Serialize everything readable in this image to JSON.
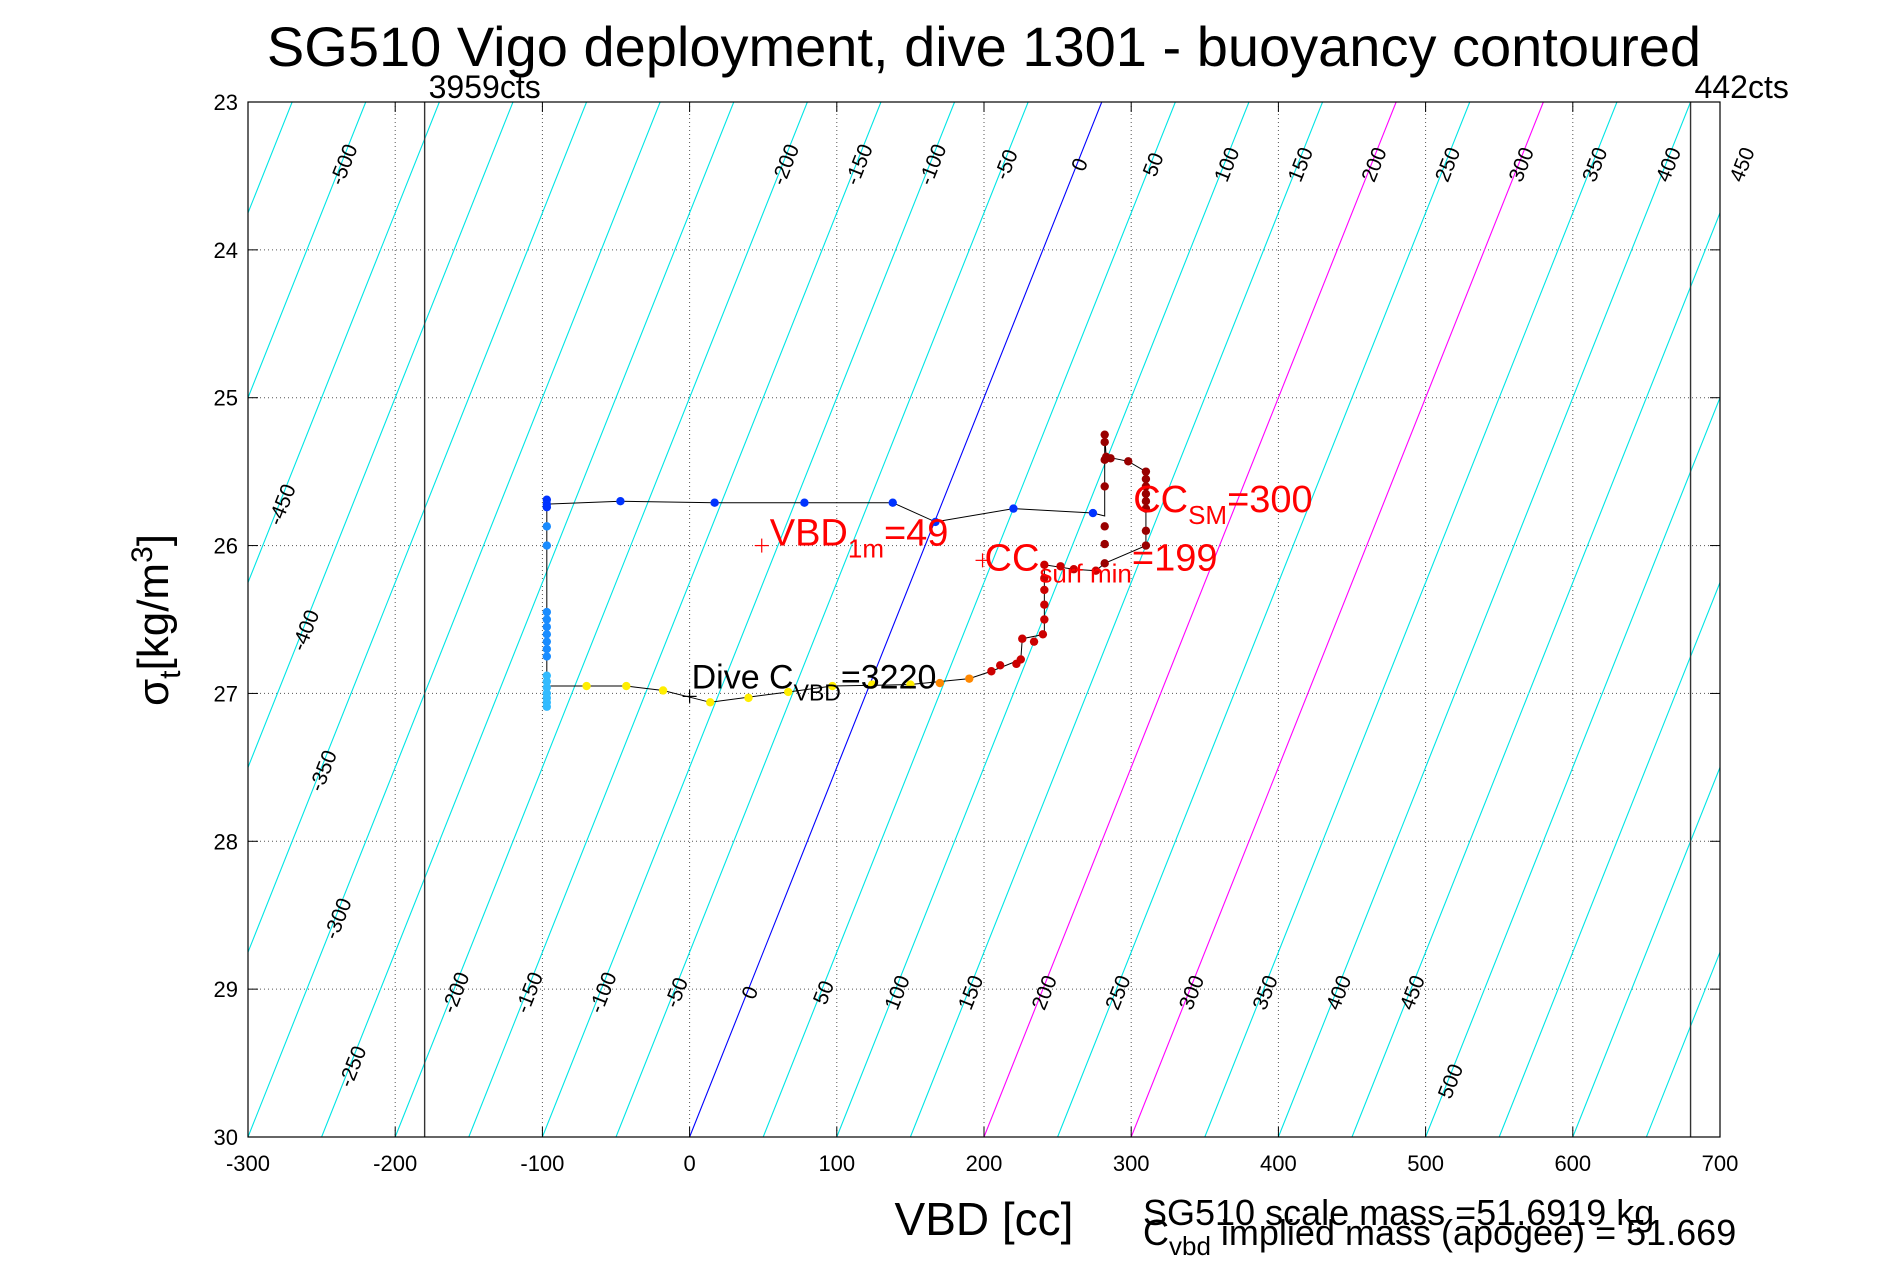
{
  "chart_data": {
    "type": "scatter",
    "title": "SG510 Vigo deployment, dive 1301 - buoyancy contoured",
    "xlabel": "VBD [cc]",
    "ylabel_main": "σ",
    "ylabel_sub": "t",
    "ylabel_units": "[kg/m",
    "ylabel_sup": "3",
    "ylabel_close": "]",
    "xlim": [
      -300,
      700
    ],
    "ylim": [
      23,
      30
    ],
    "y_reversed": true,
    "grid": true,
    "xticks": [
      -300,
      -200,
      -100,
      0,
      100,
      200,
      300,
      400,
      500,
      600,
      700
    ],
    "xtick_labels": [
      "-300",
      "-200",
      "-100",
      "0",
      "100",
      "200",
      "300",
      "400",
      "500",
      "600",
      "700"
    ],
    "yticks": [
      23,
      24,
      25,
      26,
      27,
      28,
      29,
      30
    ],
    "ytick_labels": [
      "23",
      "24",
      "25",
      "26",
      "27",
      "28",
      "29",
      "30"
    ],
    "vbd_limits": [
      {
        "vbd": -180,
        "label": "3959cts"
      },
      {
        "vbd": 680,
        "label": "442cts"
      }
    ],
    "buoyancy_contours": {
      "x_at_sigma30_per_level": 1.0,
      "x_shift_per_sigma_unit": 40,
      "step": 50,
      "levels": [
        -550,
        -500,
        -450,
        -400,
        -350,
        -300,
        -250,
        -200,
        -150,
        -100,
        -50,
        0,
        50,
        100,
        150,
        200,
        250,
        300,
        350,
        400,
        450,
        500,
        550,
        600,
        650,
        700,
        750,
        800,
        850,
        900
      ],
      "color": "#00e5e5",
      "highlights": [
        {
          "level": 0,
          "color": "#0000ff"
        },
        {
          "level": 200,
          "color": "#ff00ff"
        },
        {
          "level": 300,
          "color": "#ff00ff"
        }
      ],
      "bottom_labels": {
        "sigma": 29.0,
        "levels": [
          -200,
          -150,
          -100,
          -50,
          0,
          50,
          100,
          150,
          200,
          250,
          300,
          350,
          400,
          450
        ],
        "texts": [
          "-200",
          "-150",
          "-100",
          "-50",
          "0",
          "50",
          "100",
          "150",
          "200",
          "250",
          "300",
          "350",
          "400",
          "450"
        ]
      },
      "top_labels": {
        "sigma": 23.4,
        "levels": [
          -500,
          -200,
          -150,
          -100,
          -50,
          0,
          50,
          100,
          150,
          200,
          250,
          300,
          350,
          400,
          450
        ],
        "texts": [
          "-500",
          "-200",
          "-150",
          "-100",
          "-50",
          "0",
          "50",
          "100",
          "150",
          "200",
          "250",
          "300",
          "350",
          "400",
          "450"
        ]
      },
      "left_labels": {
        "texts": [
          "-450",
          "-400",
          "-350",
          "-300",
          "-250"
        ],
        "levels": [
          -450,
          -400,
          -350,
          -300,
          -250
        ],
        "x_positions": [
          -278,
          -262,
          -250,
          -240,
          -230
        ]
      },
      "extra_labels": [
        {
          "text": "500",
          "level": 500,
          "sigma": 29.6
        }
      ]
    },
    "series": [
      {
        "color": "#0033ff",
        "points": [
          [
            -97,
            25.69
          ],
          [
            -97,
            25.72
          ],
          [
            -97,
            25.74
          ],
          [
            -47,
            25.7
          ],
          [
            17,
            25.71
          ],
          [
            78,
            25.71
          ],
          [
            138,
            25.71
          ],
          [
            167,
            25.84
          ],
          [
            220,
            25.75
          ],
          [
            274,
            25.78
          ]
        ]
      },
      {
        "color": "#1a8cff",
        "points": [
          [
            -97,
            25.87
          ],
          [
            -97,
            26.0
          ],
          [
            -97,
            26.45
          ],
          [
            -97,
            26.5
          ],
          [
            -97,
            26.55
          ],
          [
            -97,
            26.6
          ],
          [
            -97,
            26.65
          ],
          [
            -97,
            26.7
          ],
          [
            -97,
            26.75
          ]
        ]
      },
      {
        "color": "#33bbff",
        "points": [
          [
            -97,
            26.88
          ],
          [
            -97,
            26.92
          ],
          [
            -97,
            26.96
          ],
          [
            -97,
            27.0
          ],
          [
            -97,
            27.03
          ],
          [
            -97,
            27.06
          ],
          [
            -97,
            27.09
          ]
        ]
      },
      {
        "color": "#ffee00",
        "points": [
          [
            -70,
            26.95
          ],
          [
            -43,
            26.95
          ],
          [
            -18,
            26.98
          ],
          [
            14,
            27.06
          ],
          [
            40,
            27.03
          ],
          [
            67,
            26.99
          ],
          [
            97,
            26.95
          ],
          [
            124,
            26.94
          ],
          [
            150,
            26.94
          ]
        ]
      },
      {
        "color": "#ff8800",
        "points": [
          [
            170,
            26.93
          ],
          [
            190,
            26.9
          ]
        ]
      },
      {
        "color": "#cc0000",
        "points": [
          [
            205,
            26.85
          ],
          [
            211,
            26.81
          ],
          [
            222,
            26.8
          ],
          [
            225,
            26.77
          ],
          [
            226,
            26.63
          ],
          [
            234,
            26.65
          ],
          [
            240,
            26.6
          ],
          [
            241,
            26.5
          ],
          [
            241,
            26.4
          ],
          [
            241,
            26.3
          ],
          [
            241,
            26.22
          ],
          [
            241,
            26.13
          ],
          [
            252,
            26.14
          ],
          [
            261,
            26.16
          ],
          [
            276,
            26.17
          ]
        ]
      },
      {
        "color": "#990000",
        "points": [
          [
            282,
            26.12
          ],
          [
            282,
            25.99
          ],
          [
            282,
            25.87
          ],
          [
            282,
            25.6
          ],
          [
            282,
            25.42
          ],
          [
            283,
            25.4
          ],
          [
            282,
            25.25
          ],
          [
            282,
            25.3
          ],
          [
            286,
            25.41
          ],
          [
            298,
            25.43
          ],
          [
            310,
            25.5
          ],
          [
            310,
            25.55
          ],
          [
            310,
            25.6
          ],
          [
            310,
            25.65
          ],
          [
            310,
            25.7
          ],
          [
            310,
            25.75
          ],
          [
            310,
            25.9
          ],
          [
            310,
            26.0
          ]
        ]
      }
    ],
    "track_line": [
      [
        -97,
        25.72
      ],
      [
        -47,
        25.7
      ],
      [
        17,
        25.71
      ],
      [
        78,
        25.71
      ],
      [
        138,
        25.71
      ],
      [
        167,
        25.84
      ],
      [
        220,
        25.75
      ],
      [
        274,
        25.78
      ],
      [
        282,
        25.8
      ],
      [
        282,
        25.25
      ],
      [
        283,
        25.4
      ],
      [
        298,
        25.43
      ],
      [
        310,
        25.5
      ],
      [
        310,
        26.0
      ],
      [
        282,
        26.12
      ],
      [
        276,
        26.17
      ],
      [
        261,
        26.16
      ],
      [
        241,
        26.13
      ],
      [
        241,
        26.6
      ],
      [
        226,
        26.63
      ],
      [
        225,
        26.77
      ],
      [
        205,
        26.85
      ],
      [
        190,
        26.9
      ],
      [
        150,
        26.94
      ],
      [
        97,
        26.95
      ],
      [
        67,
        26.99
      ],
      [
        14,
        27.06
      ],
      [
        -18,
        26.98
      ],
      [
        -43,
        26.95
      ],
      [
        -97,
        26.95
      ],
      [
        -97,
        25.72
      ]
    ],
    "annotations": [
      {
        "key": "vbd1m",
        "vbd": 49,
        "sigma": 26.0,
        "marker": "+",
        "color": "#ff0000",
        "main": "VBD",
        "sub": "1m",
        "tail": "=49"
      },
      {
        "key": "ccsm",
        "vbd": 300,
        "sigma": 25.84,
        "color": "#ff0000",
        "main": "CC",
        "sub": "SM",
        "tail": "=300"
      },
      {
        "key": "ccsurf",
        "vbd": 199,
        "sigma": 26.1,
        "marker": "+",
        "color": "#ff0000",
        "main": "CC",
        "sub": "surf min",
        "tail": "=199"
      },
      {
        "key": "divec",
        "vbd": 0,
        "sigma": 27.02,
        "marker": "+",
        "color": "#000000",
        "main": "Dive C",
        "sub": "VBD",
        "tail": "=3220"
      }
    ]
  },
  "footer": {
    "scale_mass": "SG510 scale mass =51.6919 kg",
    "implied_main": "C",
    "implied_sub": "vbd",
    "implied_tail": " implied mass (apogee) = 51.669"
  }
}
